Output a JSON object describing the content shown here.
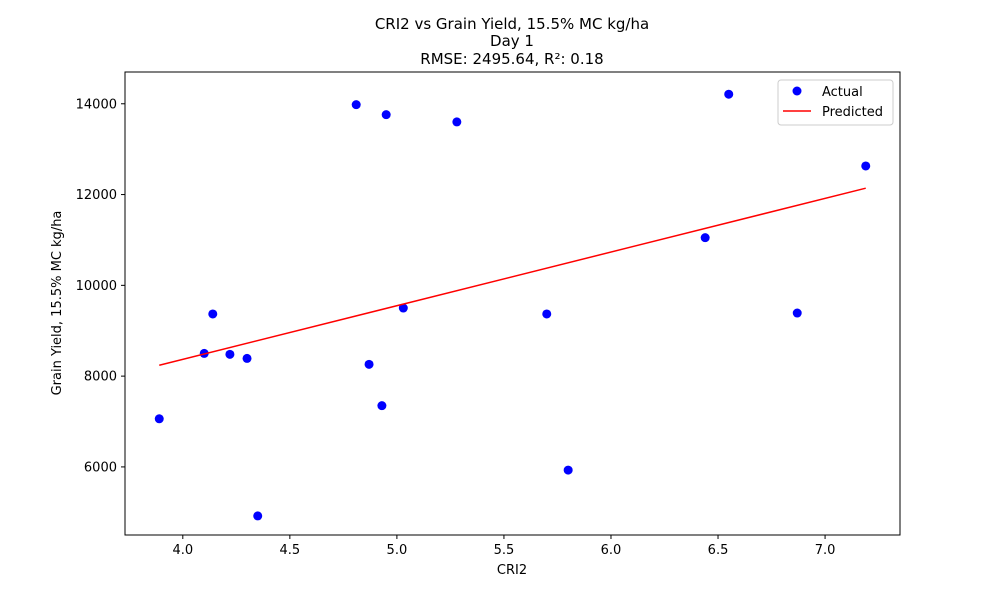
{
  "chart_data": {
    "type": "scatter",
    "title_lines": [
      "CRI2 vs Grain Yield, 15.5% MC kg/ha",
      "Day 1",
      "RMSE: 2495.64, R²: 0.18"
    ],
    "xlabel": "CRI2",
    "ylabel": "Grain Yield, 15.5% MC kg/ha",
    "xlim": [
      3.73,
      7.35
    ],
    "ylim": [
      4500,
      14700
    ],
    "xticks": [
      4.0,
      4.5,
      5.0,
      5.5,
      6.0,
      6.5,
      7.0
    ],
    "xtick_labels": [
      "4.0",
      "4.5",
      "5.0",
      "5.5",
      "6.0",
      "6.5",
      "7.0"
    ],
    "yticks": [
      6000,
      8000,
      10000,
      12000,
      14000
    ],
    "ytick_labels": [
      "6000",
      "8000",
      "10000",
      "12000",
      "14000"
    ],
    "grid": false,
    "legend_position": "top-right",
    "series": [
      {
        "name": "Actual",
        "kind": "scatter",
        "color": "#0000ff",
        "points": [
          {
            "x": 3.89,
            "y": 7060
          },
          {
            "x": 4.1,
            "y": 8500
          },
          {
            "x": 4.14,
            "y": 9370
          },
          {
            "x": 4.22,
            "y": 8480
          },
          {
            "x": 4.3,
            "y": 8390
          },
          {
            "x": 4.35,
            "y": 4920
          },
          {
            "x": 4.81,
            "y": 13980
          },
          {
            "x": 4.87,
            "y": 8260
          },
          {
            "x": 4.93,
            "y": 7350
          },
          {
            "x": 4.95,
            "y": 13760
          },
          {
            "x": 5.03,
            "y": 9500
          },
          {
            "x": 5.28,
            "y": 13600
          },
          {
            "x": 5.7,
            "y": 9370
          },
          {
            "x": 5.8,
            "y": 5930
          },
          {
            "x": 6.44,
            "y": 11050
          },
          {
            "x": 6.55,
            "y": 14210
          },
          {
            "x": 6.87,
            "y": 9390
          },
          {
            "x": 7.19,
            "y": 12630
          }
        ]
      },
      {
        "name": "Predicted",
        "kind": "line",
        "color": "#ff0000",
        "points": [
          {
            "x": 3.89,
            "y": 8240
          },
          {
            "x": 7.19,
            "y": 12140
          }
        ]
      }
    ]
  }
}
